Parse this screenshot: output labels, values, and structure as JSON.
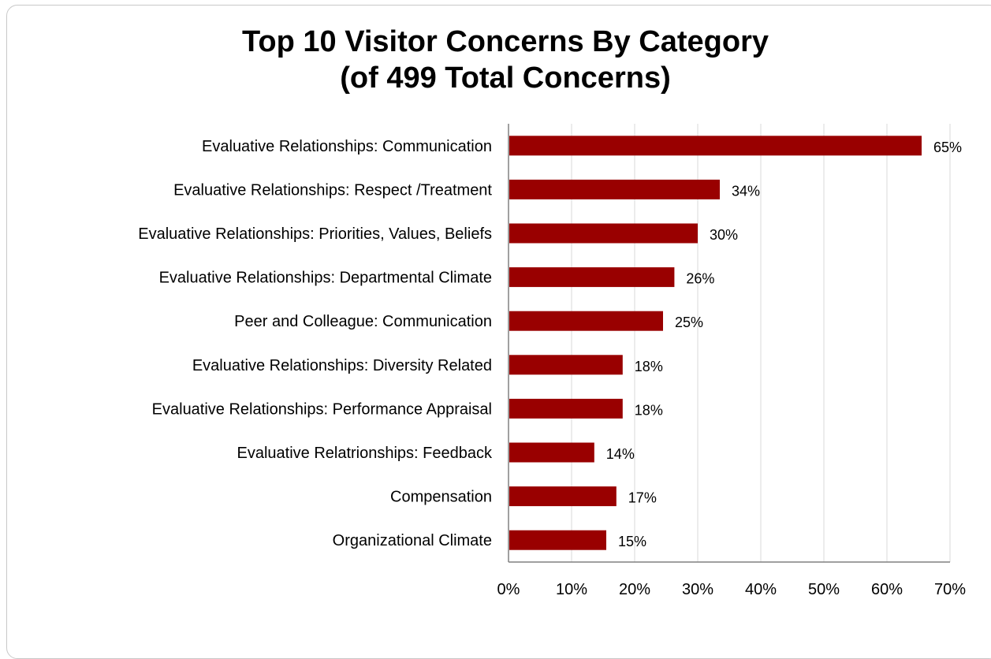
{
  "chart_data": {
    "type": "bar",
    "orientation": "horizontal",
    "title_lines": [
      "Top 10 Visitor Concerns By Category",
      "(of 499 Total Concerns)"
    ],
    "categories": [
      "Evaluative Relationships: Communication",
      "Evaluative Relationships: Respect /Treatment",
      "Evaluative Relationships: Priorities, Values, Beliefs",
      "Evaluative Relationships: Departmental Climate",
      "Peer and Colleague: Communication",
      "Evaluative Relationships: Diversity Related",
      "Evaluative Relationships: Performance Appraisal",
      "Evaluative Relatrionships: Feedback",
      "Compensation",
      "Organizational Climate"
    ],
    "values": [
      65.5,
      33.5,
      30,
      26.3,
      24.5,
      18.1,
      18.1,
      13.6,
      17.1,
      15.5
    ],
    "data_labels": [
      "65%",
      "34%",
      "30%",
      "26%",
      "25%",
      "18%",
      "18%",
      "14%",
      "17%",
      "15%"
    ],
    "xlim": [
      0,
      70
    ],
    "x_ticks": [
      0,
      10,
      20,
      30,
      40,
      50,
      60,
      70
    ],
    "x_tick_labels": [
      "0%",
      "10%",
      "20%",
      "30%",
      "40%",
      "50%",
      "60%",
      "70%"
    ],
    "grid": "vertical",
    "bar_color": "#990000",
    "grid_color": "#d9d9d9",
    "axis_color": "#808080"
  }
}
